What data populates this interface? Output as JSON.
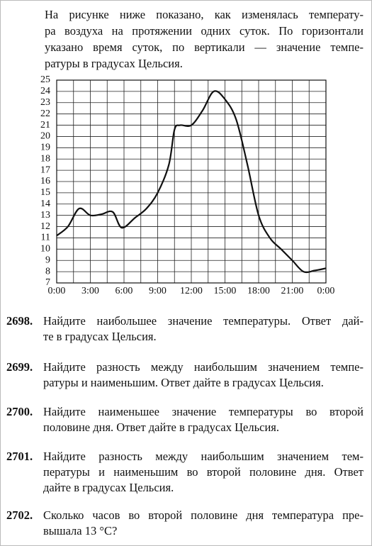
{
  "intro": [
    "На рисунке ниже показано, как изменялась температу-",
    "ра воздуха на протяжении одних суток. По горизонтали",
    "указано время суток, по вертикали — значение темпе-",
    "ратуры в градусах Цельсия."
  ],
  "chart_data": {
    "type": "line",
    "x": [
      0,
      1,
      2,
      3,
      4,
      5,
      5.8,
      7,
      8,
      9,
      10,
      10.5,
      11,
      12,
      13,
      14,
      15,
      16,
      17,
      18,
      19,
      20,
      21,
      22,
      23,
      24
    ],
    "series": [
      {
        "color": "#111111",
        "values": [
          11.2,
          12,
          13.6,
          13,
          13.1,
          13.3,
          11.9,
          12.8,
          13.6,
          15,
          17.5,
          20.6,
          21,
          21,
          22.3,
          24,
          23.3,
          21.5,
          17.5,
          13,
          11,
          10,
          9,
          8,
          8.1,
          8.3
        ]
      }
    ],
    "xlim": [
      0,
      24
    ],
    "ylim": [
      7,
      25
    ],
    "xticks": [
      {
        "value": 0,
        "label": "0:00"
      },
      {
        "value": 3,
        "label": "3:00"
      },
      {
        "value": 6,
        "label": "6:00"
      },
      {
        "value": 9,
        "label": "9:00"
      },
      {
        "value": 12,
        "label": "12:00"
      },
      {
        "value": 15,
        "label": "15:00"
      },
      {
        "value": 18,
        "label": "18:00"
      },
      {
        "value": 21,
        "label": "21:00"
      },
      {
        "value": 24,
        "label": "0:00"
      }
    ],
    "xgrid": [
      0,
      1.5,
      3,
      4.5,
      6,
      7.5,
      9,
      10.5,
      12,
      13.5,
      15,
      16.5,
      18,
      19.5,
      21,
      22.5,
      24
    ],
    "yticks": [
      7,
      8,
      9,
      10,
      11,
      12,
      13,
      14,
      15,
      16,
      17,
      18,
      19,
      20,
      21,
      22,
      23,
      24,
      25
    ],
    "grid": true
  },
  "problems": [
    {
      "number": "2698.",
      "lines": [
        "Найдите наибольшее значение температуры. Ответ дай-",
        "те в градусах Цельсия."
      ]
    },
    {
      "number": "2699.",
      "lines": [
        "Найдите разность между наибольшим значением темпе-",
        "ратуры и наименьшим. Ответ дайте в градусах Цельсия."
      ]
    },
    {
      "number": "2700.",
      "lines": [
        "Найдите наименьшее значение температуры во второй",
        "половине дня. Ответ дайте в градусах Цельсия."
      ]
    },
    {
      "number": "2701.",
      "lines": [
        "Найдите разность между наибольшим значением тем-",
        "пературы и наименьшим во второй половине дня. Ответ",
        "дайте в градусах Цельсия."
      ]
    },
    {
      "number": "2702.",
      "lines": [
        "Сколько часов во второй половине дня температура пре-",
        "вышала 13 °C?"
      ]
    }
  ]
}
